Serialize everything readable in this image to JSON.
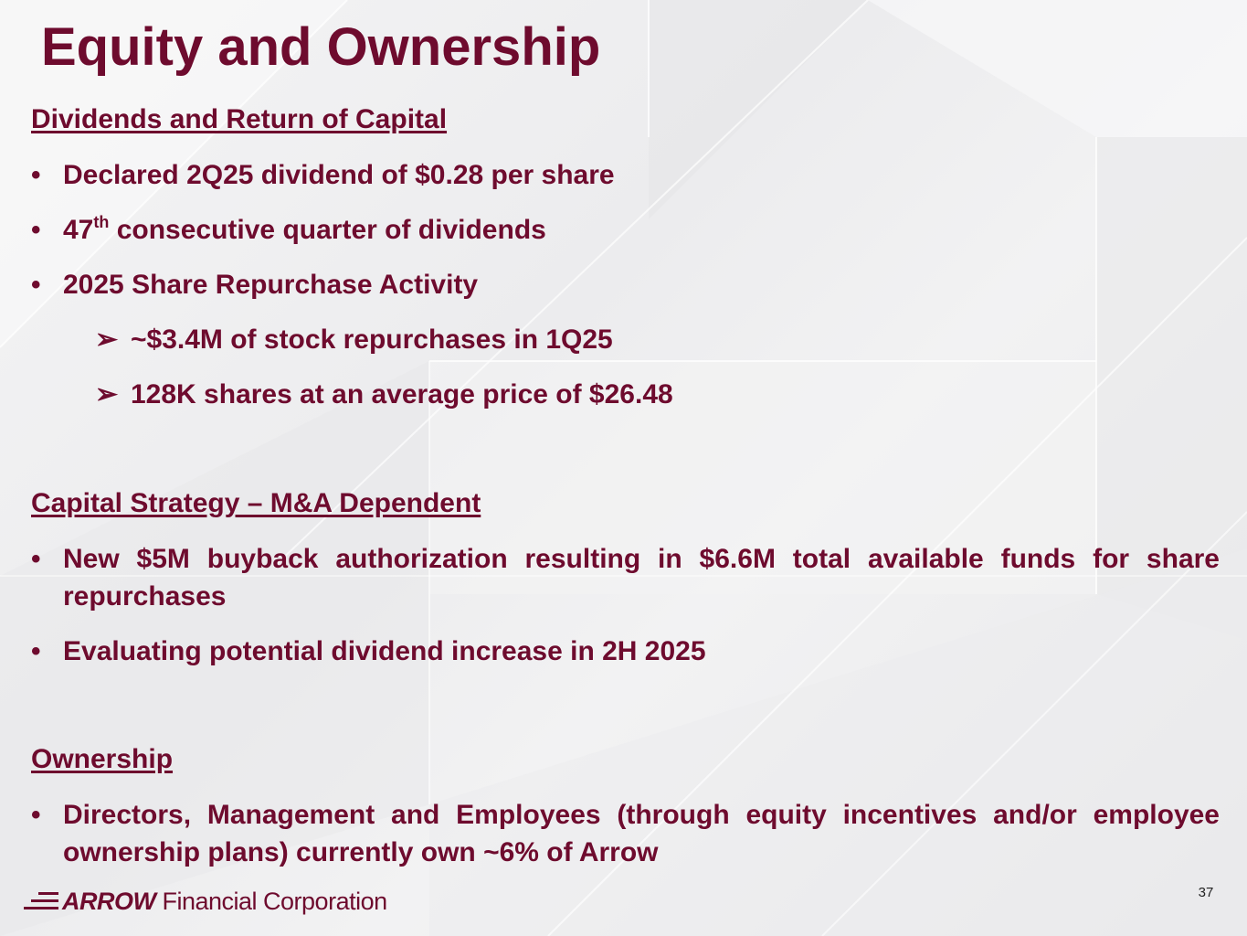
{
  "slide": {
    "title": "Equity and Ownership",
    "page_number": "37"
  },
  "sections": {
    "dividends": {
      "heading": "Dividends and Return of Capital",
      "bullet1": "Declared 2Q25 dividend of $0.28 per share",
      "bullet2_number": "47",
      "bullet2_suffix": "th",
      "bullet2_rest": " consecutive quarter of dividends",
      "bullet3": "2025 Share Repurchase Activity",
      "sub1": "~$3.4M of stock repurchases in 1Q25",
      "sub2": "128K shares at an average price of $26.48"
    },
    "capital": {
      "heading": "Capital Strategy – M&A Dependent",
      "bullet1": "New $5M buyback authorization resulting in $6.6M total available funds for share repurchases",
      "bullet2": "Evaluating potential dividend increase in 2H 2025"
    },
    "ownership": {
      "heading": "Ownership",
      "bullet1": "Directors, Management and Employees (through equity incentives and/or employee ownership plans) currently own ~6% of Arrow"
    }
  },
  "glyphs": {
    "bullet": "•",
    "sub_arrow": "➢"
  },
  "footer": {
    "logo_brand": "ARROW",
    "logo_rest": "Financial Corporation",
    "logo_icon": "arrow-logo-icon"
  },
  "colors": {
    "brand": "#6e0b2e",
    "background": "#efeff0"
  }
}
